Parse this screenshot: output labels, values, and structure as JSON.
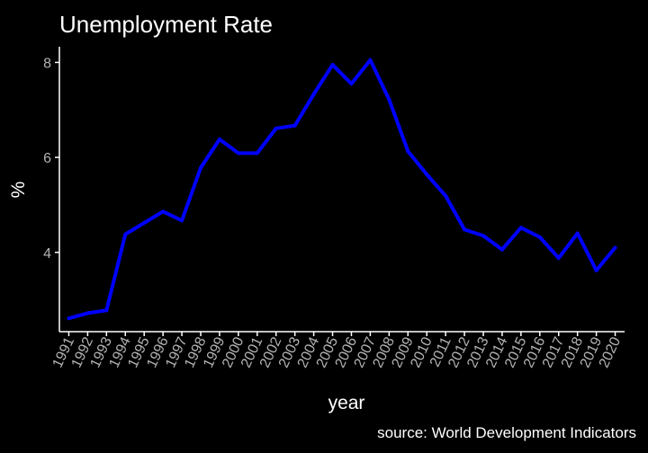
{
  "chart_data": {
    "type": "line",
    "title": "Unemployment Rate",
    "xlabel": "year",
    "ylabel": "%",
    "caption": "source: World Development Indicators",
    "x": [
      1991,
      1992,
      1993,
      1994,
      1995,
      1996,
      1997,
      1998,
      1999,
      2000,
      2001,
      2002,
      2003,
      2004,
      2005,
      2006,
      2007,
      2008,
      2009,
      2010,
      2011,
      2012,
      2013,
      2014,
      2015,
      2016,
      2017,
      2018,
      2019,
      2020
    ],
    "x_tick_labels": [
      "1991",
      "1992",
      "1993",
      "1994",
      "1995",
      "1996",
      "1997",
      "1998",
      "1999",
      "2000",
      "2001",
      "2002",
      "2003",
      "2004",
      "2005",
      "2006",
      "2007",
      "2008",
      "2009",
      "2010",
      "2011",
      "2012",
      "2013",
      "2014",
      "2015",
      "2016",
      "2017",
      "2018",
      "2019",
      "2020"
    ],
    "series": [
      {
        "values": [
          2.61,
          2.72,
          2.78,
          4.38,
          4.62,
          4.86,
          4.67,
          5.78,
          6.38,
          6.09,
          6.09,
          6.61,
          6.67,
          7.33,
          7.95,
          7.55,
          8.05,
          7.22,
          6.13,
          5.64,
          5.19,
          4.48,
          4.35,
          4.06,
          4.52,
          4.32,
          3.88,
          4.4,
          3.62,
          4.1
        ],
        "color": "#0000ff"
      }
    ],
    "y_ticks": [
      4,
      6,
      8
    ],
    "y_tick_labels": [
      "4",
      "6",
      "8"
    ],
    "xlim": [
      1990.5,
      2020.5
    ],
    "ylim": [
      2.33,
      8.33
    ],
    "grid": false,
    "legend": "none",
    "background": "#000000",
    "axis_color": "#ffffff",
    "tick_label_color": "#b3b3b3",
    "text_color": "#ffffff"
  }
}
